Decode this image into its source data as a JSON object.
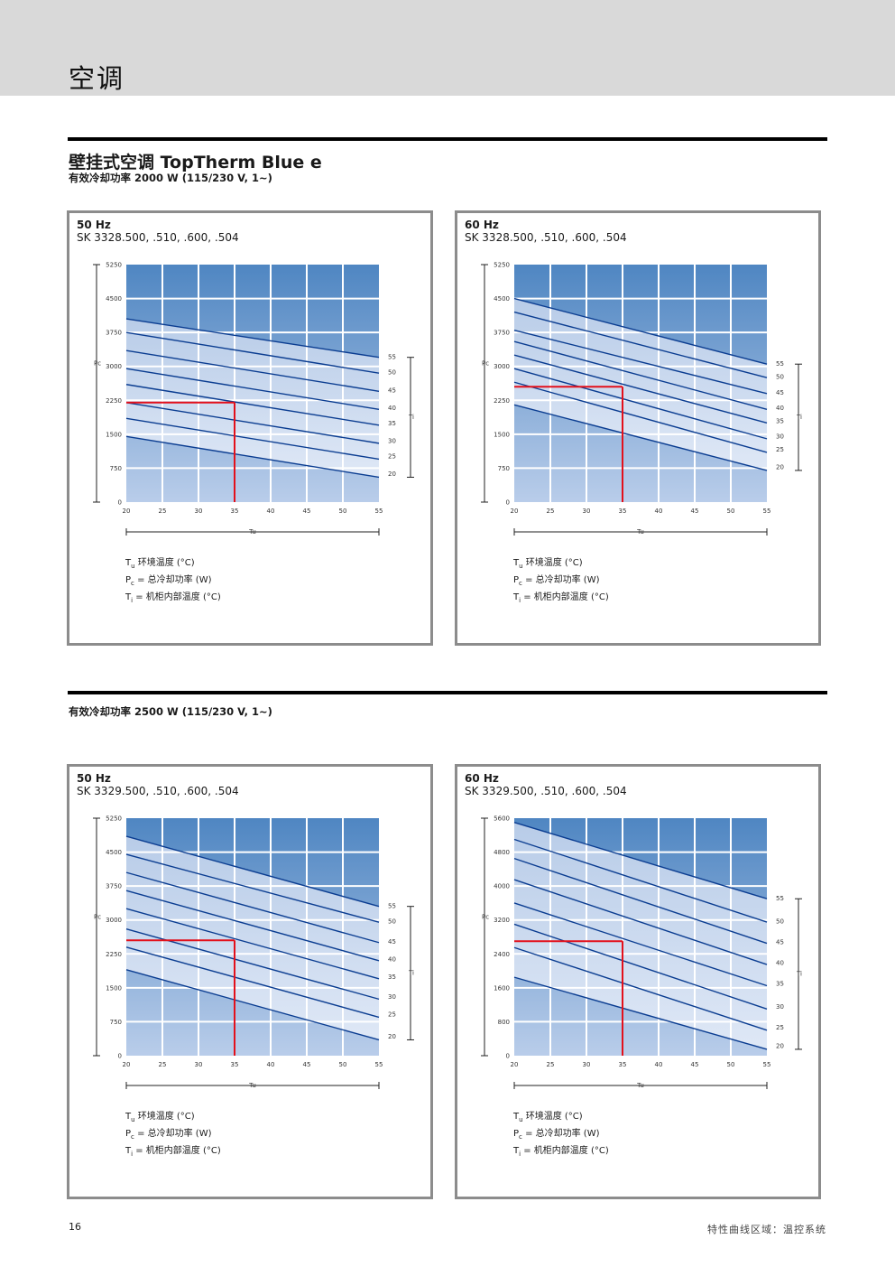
{
  "header": {
    "title": "空调"
  },
  "section1": {
    "title": "壁挂式空调 TopTherm Blue e",
    "subtitle": "有效冷却功率 2000 W (115/230 V, 1~)"
  },
  "section2": {
    "subtitle": "有效冷却功率 2500 W (115/230 V, 1~)"
  },
  "legend": {
    "tu_sym": "T",
    "tu_sub": "u",
    "tu_text": " 环境温度 (°C)",
    "pc_sym": "P",
    "pc_sub": "c",
    "pc_text": " = 总冷却功率 (W)",
    "ti_sym": "T",
    "ti_sub": "i",
    "ti_text": "  = 机柜内部温度 (°C)"
  },
  "footer": {
    "page": "16",
    "text": "特性曲线区域：温控系统"
  },
  "chart_data": [
    {
      "type": "line",
      "freq": "50 Hz",
      "model": "SK 3328.500, .510, .600, .504",
      "x_ticks": [
        "20",
        "25",
        "30",
        "35",
        "40",
        "45",
        "50",
        "55"
      ],
      "y_ticks": [
        "0",
        "750",
        "1500",
        "2250",
        "3000",
        "3750",
        "4500",
        "5250"
      ],
      "ylim": [
        0,
        5250
      ],
      "xlim": [
        20,
        55
      ],
      "xlabel": "Tu",
      "ylabel": "Pc",
      "rlabel": "Ti",
      "series": [
        {
          "name": "55",
          "values": [
            [
              20,
              4050
            ],
            [
              55,
              3200
            ]
          ]
        },
        {
          "name": "50",
          "values": [
            [
              20,
              3750
            ],
            [
              55,
              2850
            ]
          ]
        },
        {
          "name": "45",
          "values": [
            [
              20,
              3350
            ],
            [
              55,
              2450
            ]
          ]
        },
        {
          "name": "40",
          "values": [
            [
              20,
              2950
            ],
            [
              55,
              2050
            ]
          ]
        },
        {
          "name": "35",
          "values": [
            [
              20,
              2600
            ],
            [
              55,
              1700
            ]
          ]
        },
        {
          "name": "30",
          "values": [
            [
              20,
              2200
            ],
            [
              55,
              1300
            ]
          ]
        },
        {
          "name": "25",
          "values": [
            [
              20,
              1850
            ],
            [
              55,
              950
            ]
          ]
        },
        {
          "name": "20",
          "values": [
            [
              20,
              1450
            ],
            [
              55,
              550
            ]
          ]
        }
      ],
      "highlight": {
        "x": 35,
        "y": 2200
      }
    },
    {
      "type": "line",
      "freq": "60 Hz",
      "model": "SK 3328.500, .510, .600, .504",
      "x_ticks": [
        "20",
        "25",
        "30",
        "35",
        "40",
        "45",
        "50",
        "55"
      ],
      "y_ticks": [
        "0",
        "750",
        "1500",
        "2250",
        "3000",
        "3750",
        "4500",
        "5250"
      ],
      "ylim": [
        0,
        5250
      ],
      "xlim": [
        20,
        55
      ],
      "xlabel": "Tu",
      "ylabel": "Pc",
      "rlabel": "Ti",
      "series": [
        {
          "name": "55",
          "values": [
            [
              20,
              4500
            ],
            [
              55,
              3050
            ]
          ]
        },
        {
          "name": "50",
          "values": [
            [
              20,
              4200
            ],
            [
              55,
              2750
            ]
          ]
        },
        {
          "name": "45",
          "values": [
            [
              20,
              3800
            ],
            [
              55,
              2400
            ]
          ]
        },
        {
          "name": "40",
          "values": [
            [
              20,
              3550
            ],
            [
              55,
              2050
            ]
          ]
        },
        {
          "name": "35",
          "values": [
            [
              20,
              3250
            ],
            [
              55,
              1750
            ]
          ]
        },
        {
          "name": "30",
          "values": [
            [
              20,
              2950
            ],
            [
              55,
              1400
            ]
          ]
        },
        {
          "name": "25",
          "values": [
            [
              20,
              2650
            ],
            [
              55,
              1100
            ]
          ]
        },
        {
          "name": "20",
          "values": [
            [
              20,
              2150
            ],
            [
              55,
              700
            ]
          ]
        }
      ],
      "highlight": {
        "x": 35,
        "y": 2550
      }
    },
    {
      "type": "line",
      "freq": "50 Hz",
      "model": "SK 3329.500, .510, .600, .504",
      "x_ticks": [
        "20",
        "25",
        "30",
        "35",
        "40",
        "45",
        "50",
        "55"
      ],
      "y_ticks": [
        "0",
        "750",
        "1500",
        "2250",
        "3000",
        "3750",
        "4500",
        "5250"
      ],
      "ylim": [
        0,
        5250
      ],
      "xlim": [
        20,
        55
      ],
      "xlabel": "Tu",
      "ylabel": "Pc",
      "rlabel": "Ti",
      "series": [
        {
          "name": "55",
          "values": [
            [
              20,
              4850
            ],
            [
              55,
              3300
            ]
          ]
        },
        {
          "name": "50",
          "values": [
            [
              20,
              4450
            ],
            [
              55,
              2950
            ]
          ]
        },
        {
          "name": "45",
          "values": [
            [
              20,
              4050
            ],
            [
              55,
              2500
            ]
          ]
        },
        {
          "name": "40",
          "values": [
            [
              20,
              3650
            ],
            [
              55,
              2100
            ]
          ]
        },
        {
          "name": "35",
          "values": [
            [
              20,
              3250
            ],
            [
              55,
              1700
            ]
          ]
        },
        {
          "name": "30",
          "values": [
            [
              20,
              2800
            ],
            [
              55,
              1250
            ]
          ]
        },
        {
          "name": "25",
          "values": [
            [
              20,
              2400
            ],
            [
              55,
              850
            ]
          ]
        },
        {
          "name": "20",
          "values": [
            [
              20,
              1900
            ],
            [
              55,
              350
            ]
          ]
        }
      ],
      "highlight": {
        "x": 35,
        "y": 2550
      }
    },
    {
      "type": "line",
      "freq": "60 Hz",
      "model": "SK 3329.500, .510, .600, .504",
      "x_ticks": [
        "20",
        "25",
        "30",
        "35",
        "40",
        "45",
        "50",
        "55"
      ],
      "y_ticks": [
        "0",
        "800",
        "1600",
        "2400",
        "3200",
        "4000",
        "4800",
        "5600"
      ],
      "ylim": [
        0,
        5600
      ],
      "xlim": [
        20,
        55
      ],
      "xlabel": "Tu",
      "ylabel": "Pc",
      "rlabel": "Ti",
      "series": [
        {
          "name": "55",
          "values": [
            [
              20,
              5500
            ],
            [
              55,
              3700
            ]
          ]
        },
        {
          "name": "50",
          "values": [
            [
              20,
              5100
            ],
            [
              55,
              3150
            ]
          ]
        },
        {
          "name": "45",
          "values": [
            [
              20,
              4650
            ],
            [
              55,
              2650
            ]
          ]
        },
        {
          "name": "40",
          "values": [
            [
              20,
              4150
            ],
            [
              55,
              2150
            ]
          ]
        },
        {
          "name": "35",
          "values": [
            [
              20,
              3600
            ],
            [
              55,
              1650
            ]
          ]
        },
        {
          "name": "30",
          "values": [
            [
              20,
              3100
            ],
            [
              55,
              1100
            ]
          ]
        },
        {
          "name": "25",
          "values": [
            [
              20,
              2550
            ],
            [
              55,
              600
            ]
          ]
        },
        {
          "name": "20",
          "values": [
            [
              20,
              1850
            ],
            [
              55,
              150
            ]
          ]
        }
      ],
      "highlight": {
        "x": 35,
        "y": 2700
      }
    }
  ]
}
